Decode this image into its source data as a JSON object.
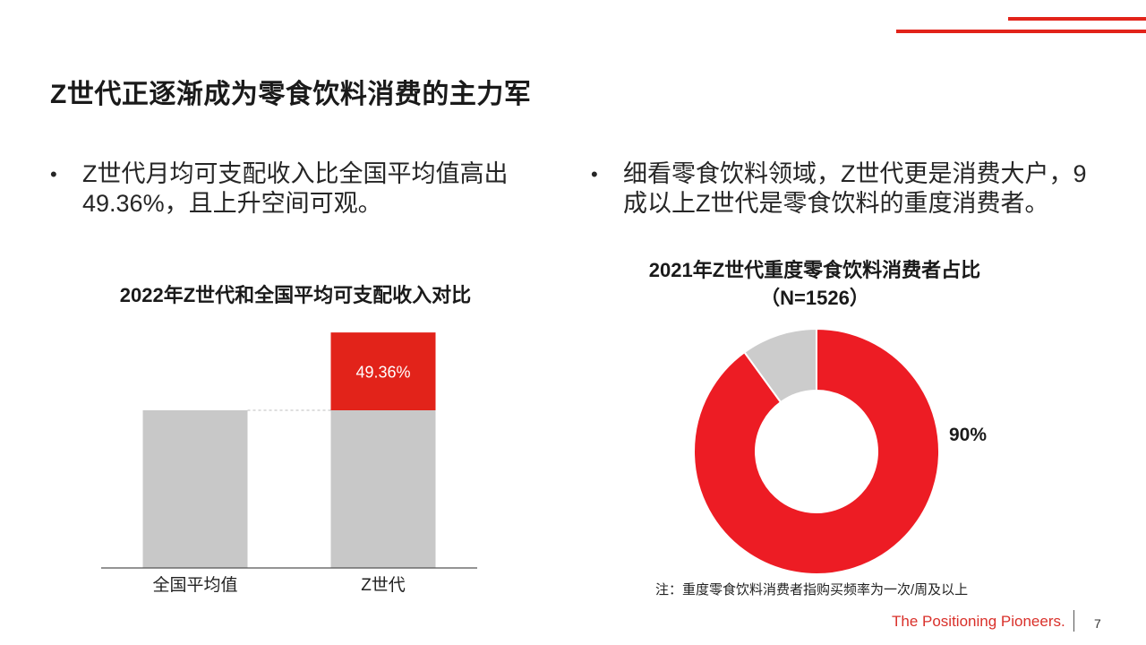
{
  "slide": {
    "title": "Z世代正逐渐成为零食饮料消费的主力军",
    "bullets": [
      {
        "marker": "•",
        "text": "Z世代月均可支配收入比全国平均值高出\n49.36%，且上升空间可观。"
      },
      {
        "marker": "•",
        "text": "细看零食饮料领域，Z世代更是消费大户，9\n成以上Z世代是零食饮料的重度消费者。"
      }
    ],
    "note": "注：重度零食饮料消费者指购买频率为一次/周及以上",
    "footer": {
      "brand": "The Positioning Pioneers.",
      "page": "7"
    }
  },
  "colors": {
    "accent": "#e2231a",
    "grey": "#c8c8c8",
    "donut_red": "#ed1c24",
    "donut_grey": "#cccccc"
  },
  "chart_data": [
    {
      "type": "bar",
      "title": "2022年Z世代和全国平均可支配收入对比",
      "categories": [
        "全国平均值",
        "Z世代"
      ],
      "series": [
        {
          "values": [
            100,
            100
          ],
          "color": "#c8c8c8"
        },
        {
          "values": [
            0,
            49.36
          ],
          "color": "#e2231a"
        }
      ],
      "stacked": true,
      "data_labels": [
        "",
        "49.36%"
      ],
      "ylim": [
        0,
        150
      ]
    },
    {
      "type": "pie",
      "donut": true,
      "title": "2021年Z世代重度零食饮料消费者占比",
      "subtitle": "（N=1526）",
      "slices": [
        {
          "value": 90,
          "label": "90%",
          "color": "#ed1c24"
        },
        {
          "value": 10,
          "label": "",
          "color": "#cccccc"
        }
      ]
    }
  ]
}
